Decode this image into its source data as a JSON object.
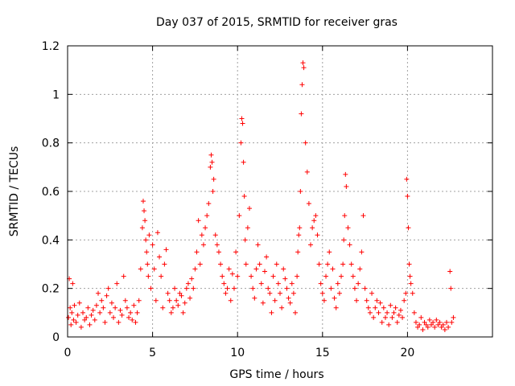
{
  "chart_data": {
    "type": "scatter",
    "title": "Day 037 of 2015, SRMTID for receiver gras",
    "xlabel": "GPS time / hours",
    "ylabel": "SRMTID / TECUs",
    "xlim": [
      0,
      25
    ],
    "ylim": [
      0,
      1.2
    ],
    "xticks": [
      0,
      5,
      10,
      15,
      20
    ],
    "xtick_labels": [
      "0",
      "5",
      "10",
      "15",
      "20"
    ],
    "yticks": [
      0,
      0.2,
      0.4,
      0.6,
      0.8,
      1.0,
      1.2
    ],
    "ytick_labels": [
      "0",
      "0.2",
      "0.4",
      "0.6",
      "0.8",
      "1",
      "1.2"
    ],
    "grid": true,
    "marker": "plus",
    "series_color": "#ff0000",
    "series": [
      {
        "name": "SRMTID",
        "x": [
          0.05,
          0.1,
          0.15,
          0.2,
          0.25,
          0.3,
          0.35,
          0.4,
          0.5,
          0.6,
          0.7,
          0.8,
          0.9,
          1.0,
          1.1,
          1.2,
          1.3,
          1.4,
          1.5,
          1.6,
          1.7,
          1.8,
          1.9,
          2.0,
          2.1,
          2.2,
          2.3,
          2.4,
          2.5,
          2.6,
          2.7,
          2.8,
          2.9,
          3.0,
          3.1,
          3.2,
          3.3,
          3.4,
          3.5,
          3.6,
          3.7,
          3.8,
          3.9,
          4.0,
          4.1,
          4.2,
          4.3,
          4.4,
          4.45,
          4.5,
          4.55,
          4.6,
          4.65,
          4.7,
          4.75,
          4.8,
          4.9,
          5.0,
          5.1,
          5.2,
          5.3,
          5.4,
          5.5,
          5.6,
          5.7,
          5.8,
          5.9,
          6.0,
          6.1,
          6.2,
          6.3,
          6.4,
          6.5,
          6.6,
          6.7,
          6.8,
          6.9,
          7.0,
          7.1,
          7.2,
          7.3,
          7.4,
          7.5,
          7.6,
          7.7,
          7.8,
          7.9,
          8.0,
          8.1,
          8.2,
          8.3,
          8.4,
          8.45,
          8.5,
          8.55,
          8.6,
          8.7,
          8.8,
          8.9,
          9.0,
          9.1,
          9.2,
          9.3,
          9.4,
          9.5,
          9.6,
          9.7,
          9.8,
          9.9,
          10.0,
          10.1,
          10.2,
          10.25,
          10.3,
          10.35,
          10.4,
          10.45,
          10.5,
          10.6,
          10.7,
          10.8,
          10.9,
          11.0,
          11.1,
          11.2,
          11.3,
          11.4,
          11.5,
          11.6,
          11.7,
          11.8,
          11.9,
          12.0,
          12.1,
          12.2,
          12.3,
          12.4,
          12.5,
          12.6,
          12.7,
          12.8,
          12.9,
          13.0,
          13.1,
          13.2,
          13.3,
          13.4,
          13.5,
          13.55,
          13.6,
          13.65,
          13.7,
          13.75,
          13.8,
          13.85,
          13.9,
          14.0,
          14.1,
          14.2,
          14.3,
          14.4,
          14.5,
          14.6,
          14.7,
          14.8,
          14.9,
          15.0,
          15.1,
          15.2,
          15.3,
          15.4,
          15.5,
          15.6,
          15.7,
          15.8,
          15.9,
          16.0,
          16.1,
          16.2,
          16.25,
          16.3,
          16.35,
          16.4,
          16.5,
          16.6,
          16.7,
          16.8,
          16.9,
          17.0,
          17.1,
          17.2,
          17.3,
          17.4,
          17.5,
          17.6,
          17.7,
          17.8,
          17.9,
          18.0,
          18.1,
          18.2,
          18.3,
          18.4,
          18.5,
          18.6,
          18.7,
          18.8,
          18.9,
          19.0,
          19.1,
          19.2,
          19.3,
          19.4,
          19.5,
          19.6,
          19.7,
          19.8,
          19.9,
          19.95,
          20.0,
          20.05,
          20.1,
          20.15,
          20.2,
          20.3,
          20.4,
          20.5,
          20.6,
          20.7,
          20.8,
          20.9,
          21.0,
          21.1,
          21.2,
          21.3,
          21.4,
          21.5,
          21.6,
          21.7,
          21.8,
          21.9,
          22.0,
          22.1,
          22.2,
          22.3,
          22.4,
          22.5,
          22.55,
          22.6,
          22.7
        ],
        "y": [
          0.08,
          0.24,
          0.12,
          0.05,
          0.1,
          0.22,
          0.07,
          0.13,
          0.06,
          0.09,
          0.14,
          0.04,
          0.1,
          0.07,
          0.08,
          0.12,
          0.05,
          0.09,
          0.11,
          0.07,
          0.13,
          0.18,
          0.1,
          0.15,
          0.12,
          0.06,
          0.17,
          0.2,
          0.1,
          0.14,
          0.08,
          0.12,
          0.22,
          0.06,
          0.11,
          0.09,
          0.25,
          0.15,
          0.12,
          0.08,
          0.1,
          0.07,
          0.13,
          0.06,
          0.1,
          0.15,
          0.28,
          0.45,
          0.56,
          0.52,
          0.48,
          0.4,
          0.35,
          0.3,
          0.25,
          0.42,
          0.2,
          0.38,
          0.28,
          0.15,
          0.43,
          0.33,
          0.25,
          0.12,
          0.3,
          0.36,
          0.18,
          0.15,
          0.1,
          0.12,
          0.2,
          0.15,
          0.13,
          0.18,
          0.17,
          0.1,
          0.14,
          0.2,
          0.22,
          0.16,
          0.24,
          0.2,
          0.28,
          0.35,
          0.48,
          0.3,
          0.42,
          0.38,
          0.45,
          0.5,
          0.55,
          0.7,
          0.75,
          0.72,
          0.6,
          0.65,
          0.42,
          0.38,
          0.35,
          0.3,
          0.25,
          0.22,
          0.18,
          0.2,
          0.28,
          0.15,
          0.26,
          0.2,
          0.35,
          0.25,
          0.5,
          0.8,
          0.9,
          0.88,
          0.72,
          0.58,
          0.4,
          0.3,
          0.45,
          0.53,
          0.25,
          0.2,
          0.16,
          0.28,
          0.38,
          0.3,
          0.22,
          0.14,
          0.27,
          0.33,
          0.2,
          0.18,
          0.1,
          0.25,
          0.15,
          0.3,
          0.22,
          0.18,
          0.12,
          0.28,
          0.24,
          0.2,
          0.16,
          0.14,
          0.22,
          0.18,
          0.1,
          0.25,
          0.35,
          0.42,
          0.45,
          0.6,
          0.92,
          1.04,
          1.13,
          1.11,
          0.8,
          0.68,
          0.55,
          0.38,
          0.45,
          0.48,
          0.5,
          0.42,
          0.3,
          0.22,
          0.18,
          0.15,
          0.25,
          0.3,
          0.35,
          0.2,
          0.28,
          0.16,
          0.12,
          0.22,
          0.18,
          0.25,
          0.3,
          0.4,
          0.5,
          0.67,
          0.62,
          0.45,
          0.38,
          0.3,
          0.25,
          0.2,
          0.15,
          0.22,
          0.28,
          0.35,
          0.5,
          0.2,
          0.15,
          0.12,
          0.1,
          0.18,
          0.08,
          0.12,
          0.15,
          0.1,
          0.14,
          0.06,
          0.12,
          0.08,
          0.1,
          0.05,
          0.13,
          0.08,
          0.1,
          0.12,
          0.06,
          0.09,
          0.11,
          0.08,
          0.15,
          0.18,
          0.65,
          0.58,
          0.45,
          0.3,
          0.25,
          0.22,
          0.18,
          0.1,
          0.06,
          0.04,
          0.05,
          0.08,
          0.03,
          0.06,
          0.05,
          0.04,
          0.07,
          0.05,
          0.06,
          0.04,
          0.07,
          0.05,
          0.06,
          0.04,
          0.05,
          0.03,
          0.06,
          0.04,
          0.27,
          0.2,
          0.06,
          0.08
        ]
      }
    ]
  }
}
